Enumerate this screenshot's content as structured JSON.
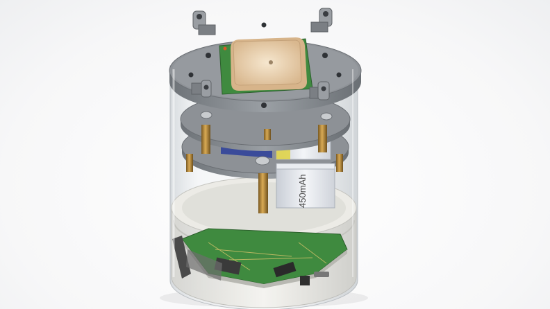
{
  "scene": {
    "battery_label": "450mAh",
    "colors": {
      "background": "#ffffff",
      "plate_grey": "#8d9196",
      "patch_antenna": "#f0dcc0",
      "pcb_green": "#3f8a3f",
      "brass_standoff": "#b8893a",
      "battery_white": "#eceff3",
      "battery_yellow": "#e0d44a",
      "battery_blue": "#3a4b9a",
      "shell_translucent": "#dfe3e6"
    }
  }
}
